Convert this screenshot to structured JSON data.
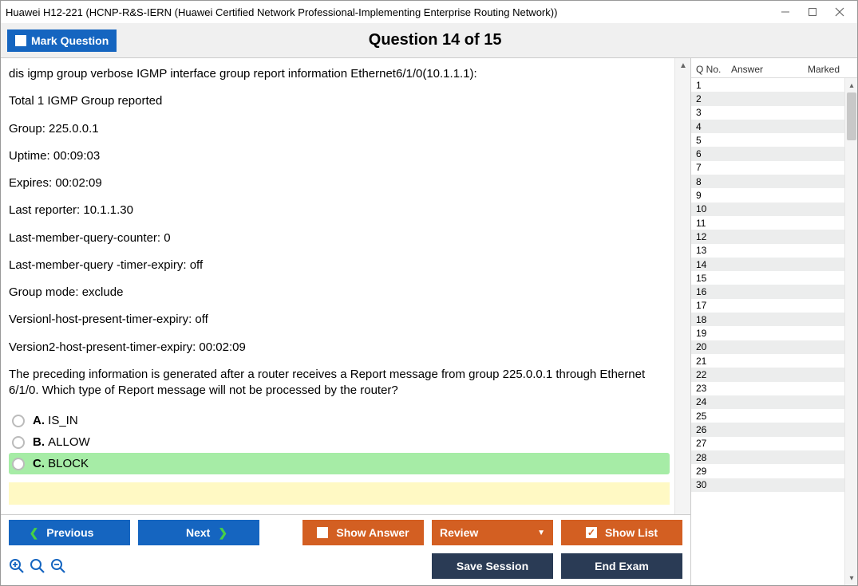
{
  "window": {
    "title": "Huawei H12-221 (HCNP-R&S-IERN (Huawei Certified Network Professional-Implementing Enterprise Routing Network))"
  },
  "header": {
    "mark_label": "Mark Question",
    "question_title": "Question 14 of 15"
  },
  "question": {
    "lines": [
      "dis igmp group verbose IGMP interface group report information Ethernet6/1/0(10.1.1.1):",
      "Total 1 IGMP Group reported",
      "Group: 225.0.0.1",
      "Uptime: 00:09:03",
      "Expires: 00:02:09",
      "Last reporter: 10.1.1.30",
      "Last-member-query-counter: 0",
      "Last-member-query -timer-expiry: off",
      "Group mode: exclude",
      "Versionl-host-present-timer-expiry: off",
      "Version2-host-present-timer-expiry: 00:02:09",
      "The preceding information is generated after a router receives a Report message from group 225.0.0.1 through Ethernet 6/1/0. Which type of Report message will not be processed by the router?"
    ],
    "options": [
      {
        "letter": "A.",
        "text": "IS_IN",
        "highlight": false
      },
      {
        "letter": "B.",
        "text": "ALLOW",
        "highlight": false
      },
      {
        "letter": "C.",
        "text": "BLOCK",
        "highlight": true
      }
    ]
  },
  "sidebar": {
    "col_qno": "Q No.",
    "col_answer": "Answer",
    "col_marked": "Marked",
    "row_count": 30
  },
  "footer": {
    "previous": "Previous",
    "next": "Next",
    "show_answer": "Show Answer",
    "review": "Review",
    "show_list": "Show List",
    "save_session": "Save Session",
    "end_exam": "End Exam"
  },
  "colors": {
    "blue": "#1565c0",
    "orange": "#d35f22",
    "navy": "#2a3b55",
    "highlight_green": "#a6eca6",
    "yellow": "#fff9c4"
  }
}
